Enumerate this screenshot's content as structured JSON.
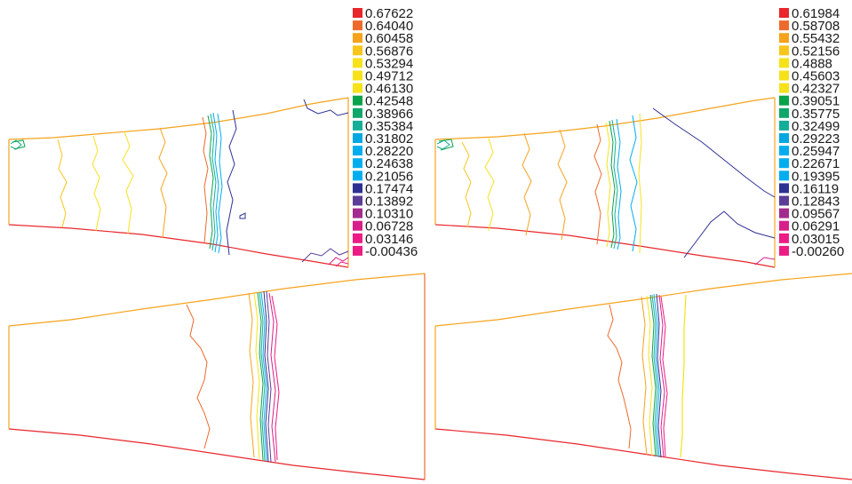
{
  "legends": [
    {
      "id": "left",
      "entries": [
        {
          "label": "0.67622",
          "color": "#e8262b"
        },
        {
          "label": "0.64040",
          "color": "#ee6a2c"
        },
        {
          "label": "0.60458",
          "color": "#f5a31c"
        },
        {
          "label": "0.56876",
          "color": "#f8c51a"
        },
        {
          "label": "0.53294",
          "color": "#f6e21a"
        },
        {
          "label": "0.49712",
          "color": "#f6e21a"
        },
        {
          "label": "0.46130",
          "color": "#f6e21a"
        },
        {
          "label": "0.42548",
          "color": "#0aa34a"
        },
        {
          "label": "0.38966",
          "color": "#10a76a"
        },
        {
          "label": "0.35384",
          "color": "#14ae98"
        },
        {
          "label": "0.31802",
          "color": "#00a7e1"
        },
        {
          "label": "0.28220",
          "color": "#00aeef"
        },
        {
          "label": "0.24638",
          "color": "#00aeef"
        },
        {
          "label": "0.21056",
          "color": "#00aeef"
        },
        {
          "label": "0.17474",
          "color": "#2e3192"
        },
        {
          "label": "0.13892",
          "color": "#5b3c96"
        },
        {
          "label": "0.10310",
          "color": "#a22c8e"
        },
        {
          "label": "0.06728",
          "color": "#d71f8a"
        },
        {
          "label": "0.03146",
          "color": "#ec1c84"
        },
        {
          "label": "-0.00436",
          "color": "#ec1c84"
        }
      ]
    },
    {
      "id": "right",
      "entries": [
        {
          "label": "0.61984",
          "color": "#e8262b"
        },
        {
          "label": "0.58708",
          "color": "#ee6a2c"
        },
        {
          "label": "0.55432",
          "color": "#f5a31c"
        },
        {
          "label": "0.52156",
          "color": "#f8c51a"
        },
        {
          "label": "0.4888",
          "color": "#f6e21a"
        },
        {
          "label": "0.45603",
          "color": "#f6e21a"
        },
        {
          "label": "0.42327",
          "color": "#f6e21a"
        },
        {
          "label": "0.39051",
          "color": "#0aa34a"
        },
        {
          "label": "0.35775",
          "color": "#10a76a"
        },
        {
          "label": "0.32499",
          "color": "#14ae98"
        },
        {
          "label": "0.29223",
          "color": "#00a7e1"
        },
        {
          "label": "0.25947",
          "color": "#00aeef"
        },
        {
          "label": "0.22671",
          "color": "#00aeef"
        },
        {
          "label": "0.19395",
          "color": "#00aeef"
        },
        {
          "label": "0.16119",
          "color": "#2e3192"
        },
        {
          "label": "0.12843",
          "color": "#5b3c96"
        },
        {
          "label": "0.09567",
          "color": "#a22c8e"
        },
        {
          "label": "0.06291",
          "color": "#d71f8a"
        },
        {
          "label": "0.03015",
          "color": "#ec1c84"
        },
        {
          "label": "-0.00260",
          "color": "#ec1c84"
        }
      ]
    }
  ],
  "colors": {
    "outline_top": "#f5a31c",
    "outline_bottom": "#e8262b",
    "orange": "#ee6a2c",
    "yellow": "#f6e21a",
    "gold": "#f5a31c",
    "green": "#0aa34a",
    "teal": "#14ae98",
    "cyan": "#00aeef",
    "navy": "#2e3192",
    "purple": "#5b3c96",
    "magenta": "#d71f8a",
    "pink": "#ec1c84"
  }
}
